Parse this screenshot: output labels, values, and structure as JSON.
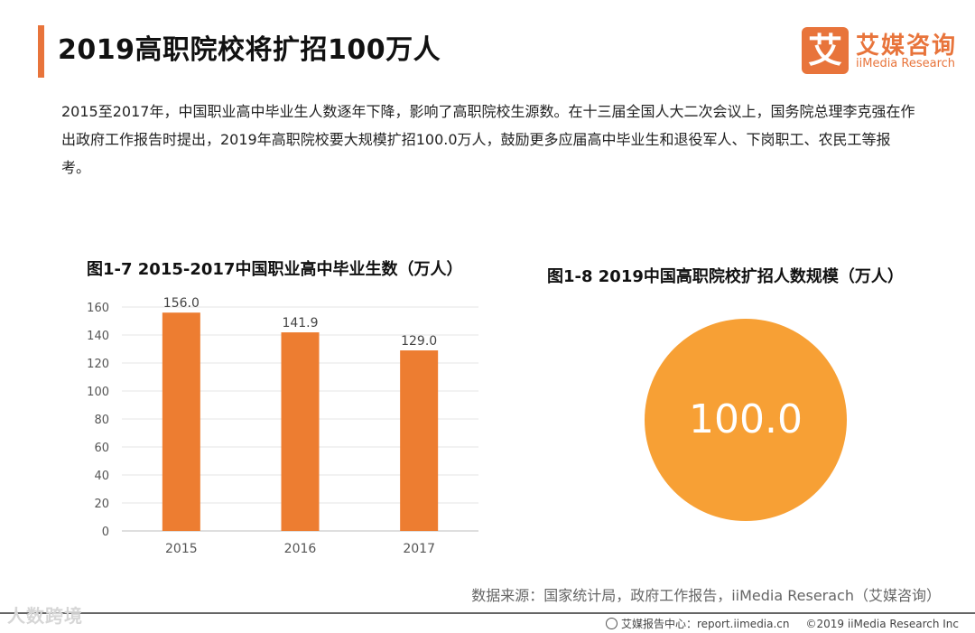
{
  "page": {
    "title": "2019高职院校将扩招100万人",
    "intro": "2015至2017年，中国职业高中毕业生人数逐年下降，影响了高职院校生源数。在十三届全国人大二次会议上，国务院总理李克强在作出政府工作报告时提出，2019年高职院校要大规模扩招100.0万人，鼓励更多应届高中毕业生和退役军人、下岗职工、农民工等报考。",
    "source": "数据来源：国家统计局，政府工作报告，iiMedia Reserach（艾媒咨询）"
  },
  "logo": {
    "mark": "艾",
    "name_cn": "艾媒咨询",
    "name_en": "iiMedia Research"
  },
  "footer": {
    "center": "艾媒报告中心：report.iimedia.cn",
    "copyright": "©2019  iiMedia Research  Inc",
    "watermark": "人数跨境"
  },
  "chart_data": [
    {
      "type": "bar",
      "title": "图1-7 2015-2017中国职业高中毕业生数（万人）",
      "categories": [
        "2015",
        "2016",
        "2017"
      ],
      "values": [
        156.0,
        141.9,
        129.0
      ],
      "value_labels": [
        "156.0",
        "141.9",
        "129.0"
      ],
      "ylim": [
        0,
        160
      ],
      "yticks": [
        0,
        20,
        40,
        60,
        80,
        100,
        120,
        140,
        160
      ],
      "grid": true,
      "color": "#ed7d31"
    },
    {
      "type": "bubble",
      "title": "图1-8 2019中国高职院校扩招人数规模（万人）",
      "value": 100.0,
      "value_label": "100.0",
      "color": "#f7a035"
    }
  ]
}
